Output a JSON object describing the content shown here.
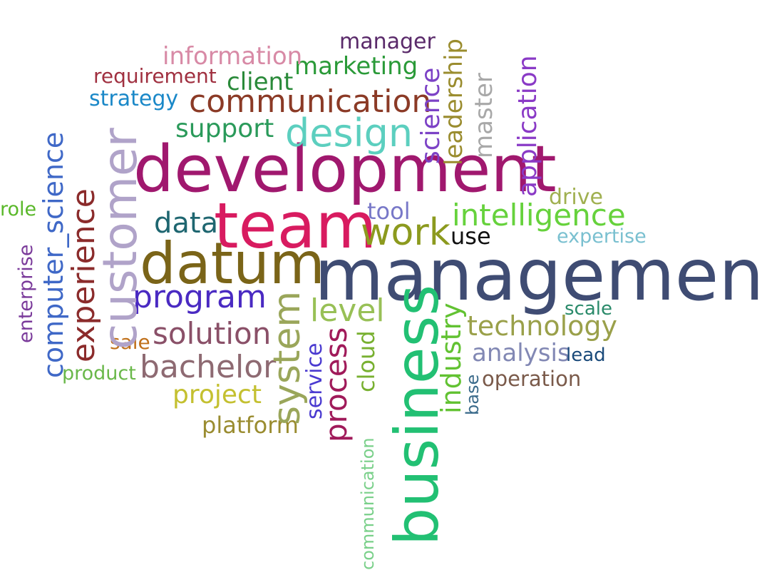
{
  "words": [
    {
      "text": "management",
      "color": "#3f4c73"
    },
    {
      "text": "development",
      "color": "#a0186e"
    },
    {
      "text": "team",
      "color": "#d81b60"
    },
    {
      "text": "datum",
      "color": "#7a6418"
    },
    {
      "text": "business",
      "color": "#22c073"
    },
    {
      "text": "customer",
      "color": "#b0a3c9"
    },
    {
      "text": "design",
      "color": "#5ccfbf"
    },
    {
      "text": "communication",
      "color": "#8b3a26"
    },
    {
      "text": "work",
      "color": "#8c9a1e"
    },
    {
      "text": "program",
      "color": "#4a2ac2"
    },
    {
      "text": "solution",
      "color": "#8a5068"
    },
    {
      "text": "bachelor",
      "color": "#8e6a72"
    },
    {
      "text": "system",
      "color": "#9aa65a"
    },
    {
      "text": "experience",
      "color": "#8b2b2b"
    },
    {
      "text": "computer_science",
      "color": "#3f68c7"
    },
    {
      "text": "intelligence",
      "color": "#66d23c"
    },
    {
      "text": "technology",
      "color": "#9aa04a"
    },
    {
      "text": "data",
      "color": "#1e6670"
    },
    {
      "text": "level",
      "color": "#98c056"
    },
    {
      "text": "process",
      "color": "#a01a5a"
    },
    {
      "text": "industry",
      "color": "#62c232"
    },
    {
      "text": "application",
      "color": "#8a3ac6"
    },
    {
      "text": "science",
      "color": "#7c42c6"
    },
    {
      "text": "leadership",
      "color": "#9a8c2e"
    },
    {
      "text": "master",
      "color": "#a8a8a8"
    },
    {
      "text": "marketing",
      "color": "#2a9a38"
    },
    {
      "text": "information",
      "color": "#d88aa6"
    },
    {
      "text": "support",
      "color": "#2a9a5a"
    },
    {
      "text": "client",
      "color": "#2a8a3a"
    },
    {
      "text": "project",
      "color": "#c4c030"
    },
    {
      "text": "analysis",
      "color": "#8288b4"
    },
    {
      "text": "tool",
      "color": "#7878c8"
    },
    {
      "text": "manager",
      "color": "#5a2a6a"
    },
    {
      "text": "requirement",
      "color": "#a03040"
    },
    {
      "text": "strategy",
      "color": "#1a88c8"
    },
    {
      "text": "platform",
      "color": "#9a8c30"
    },
    {
      "text": "operation",
      "color": "#7a5a4a"
    },
    {
      "text": "use",
      "color": "#111111"
    },
    {
      "text": "drive",
      "color": "#a0b050"
    },
    {
      "text": "expertise",
      "color": "#7ac0d0"
    },
    {
      "text": "scale",
      "color": "#2a8a6a"
    },
    {
      "text": "lead",
      "color": "#1a4a7a"
    },
    {
      "text": "service",
      "color": "#4a3ad0"
    },
    {
      "text": "cloud",
      "color": "#78b030"
    },
    {
      "text": "communication",
      "color": "#7ad08a"
    },
    {
      "text": "enterprise",
      "color": "#7a3a9a"
    },
    {
      "text": "role",
      "color": "#5ab82a"
    },
    {
      "text": "sale",
      "color": "#c0701a"
    },
    {
      "text": "product",
      "color": "#6ab84a"
    },
    {
      "text": "base",
      "color": "#3a6a8a"
    }
  ]
}
